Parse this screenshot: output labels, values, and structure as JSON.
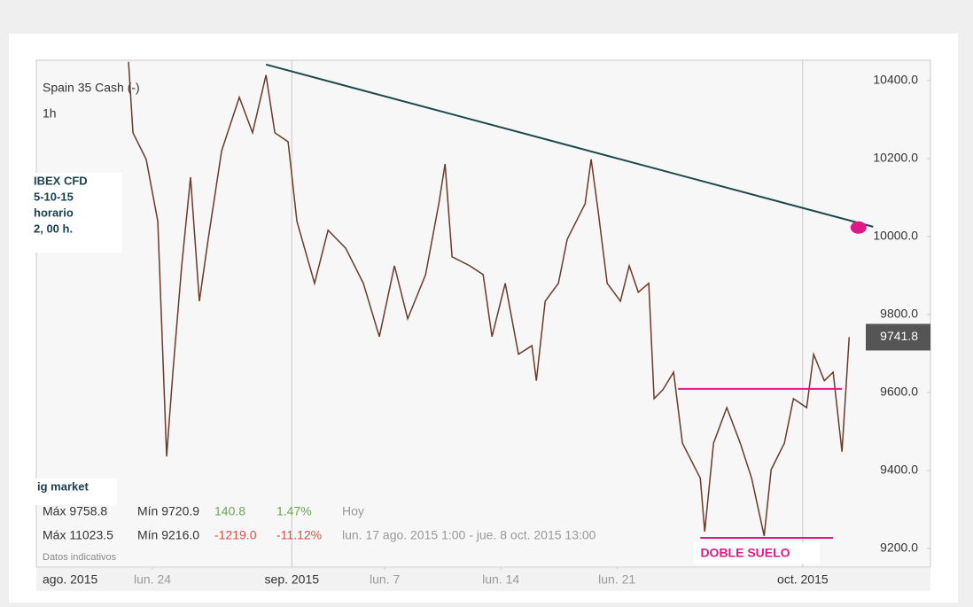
{
  "chart_data": {
    "type": "line",
    "title": "Spain 35 Cash (-)",
    "subtitle": "1h",
    "note_lines": [
      "IBEX   CFD",
      "5-10-15",
      "horario",
      "2, 00 h."
    ],
    "source_note": "ig market",
    "annotation": "DOBLE SUELO",
    "disclaimer": "Datos indicativos",
    "info_rows": [
      [
        "Máx 9758.8",
        "Mín 9720.9",
        "140.8",
        "1.47%",
        "Hoy"
      ],
      [
        "Máx 11023.5",
        "Mín 9216.0",
        "-1219.0",
        "-11.12%",
        "lun. 17 ago. 2015 1:00 - jue. 8 oct. 2015 13:00"
      ]
    ],
    "xlim": [
      0,
      38.5
    ],
    "ylim": [
      9152,
      10452
    ],
    "xticks": [
      {
        "value": 0,
        "label": "ago. 2015"
      },
      {
        "value": 11,
        "label": "sep. 2015"
      },
      {
        "value": 33,
        "label": "oct. 2015"
      }
    ],
    "minor_xticks": [
      {
        "value": 5,
        "label": "lun. 24"
      },
      {
        "value": 15,
        "label": "lun. 7"
      },
      {
        "value": 20,
        "label": "lun. 14"
      },
      {
        "value": 25,
        "label": "lun. 21"
      }
    ],
    "yticks": [
      {
        "value": 9200,
        "label": "9200.0"
      },
      {
        "value": 9400,
        "label": "9400.0"
      },
      {
        "value": 9600,
        "label": "9600.0"
      },
      {
        "value": 9800,
        "label": "9800.0"
      },
      {
        "value": 10000,
        "label": "10000.0"
      },
      {
        "value": 10200,
        "label": "10200.0"
      },
      {
        "value": 10400,
        "label": "10400.0"
      }
    ],
    "series": [
      {
        "name": "Spain 35 Cash (-)",
        "color": "#6b3a2a",
        "x": [
          3.97,
          4.16,
          4.73,
          5.23,
          5.61,
          5.88,
          6.26,
          6.64,
          7.02,
          7.4,
          7.98,
          8.74,
          9.31,
          9.89,
          10.27,
          10.84,
          11.22,
          11.98,
          12.56,
          13.32,
          14.08,
          14.77,
          15.42,
          15.99,
          16.76,
          17.33,
          17.6,
          17.9,
          18.66,
          19.24,
          19.62,
          20.19,
          20.76,
          21.34,
          21.53,
          21.91,
          22.48,
          22.86,
          23.63,
          23.89,
          24.2,
          24.58,
          25.15,
          25.53,
          25.92,
          26.37,
          26.6,
          26.98,
          27.44,
          27.82,
          28.59,
          28.78,
          29.16,
          29.73,
          30.31,
          30.8,
          31.34,
          31.64,
          32.21,
          32.6,
          33.17,
          33.47,
          33.93,
          34.31,
          34.69,
          35.0
        ],
        "values": [
          10448,
          10266,
          10198,
          10039,
          9436,
          9652,
          9925,
          10152,
          9834,
          9993,
          10220,
          10357,
          10266,
          10414,
          10266,
          10243,
          10039,
          9880,
          10016,
          9970,
          9880,
          9743,
          9925,
          9789,
          9902,
          10084,
          10186,
          9948,
          9925,
          9902,
          9743,
          9880,
          9698,
          9720,
          9630,
          9834,
          9880,
          9993,
          10084,
          10198,
          10061,
          9880,
          9834,
          9925,
          9857,
          9880,
          9584,
          9607,
          9652,
          9470,
          9380,
          9243,
          9470,
          9561,
          9470,
          9380,
          9232,
          9402,
          9470,
          9584,
          9561,
          9698,
          9630,
          9652,
          9448,
          9741.8
        ]
      }
    ],
    "lines": [
      {
        "color": "#1d4a4a",
        "x": [
          9.89,
          36.03
        ],
        "values": [
          10441,
          10025
        ]
      },
      {
        "color": "#e0198a",
        "x": [
          27.63,
          34.69
        ],
        "values": [
          9609,
          9609
        ]
      },
      {
        "color": "#e0198a",
        "x": [
          28.59,
          34.31
        ],
        "values": [
          9227,
          9227
        ]
      }
    ],
    "marker": {
      "color": "#e0198a",
      "x": 35.4,
      "value": 10023
    }
  }
}
